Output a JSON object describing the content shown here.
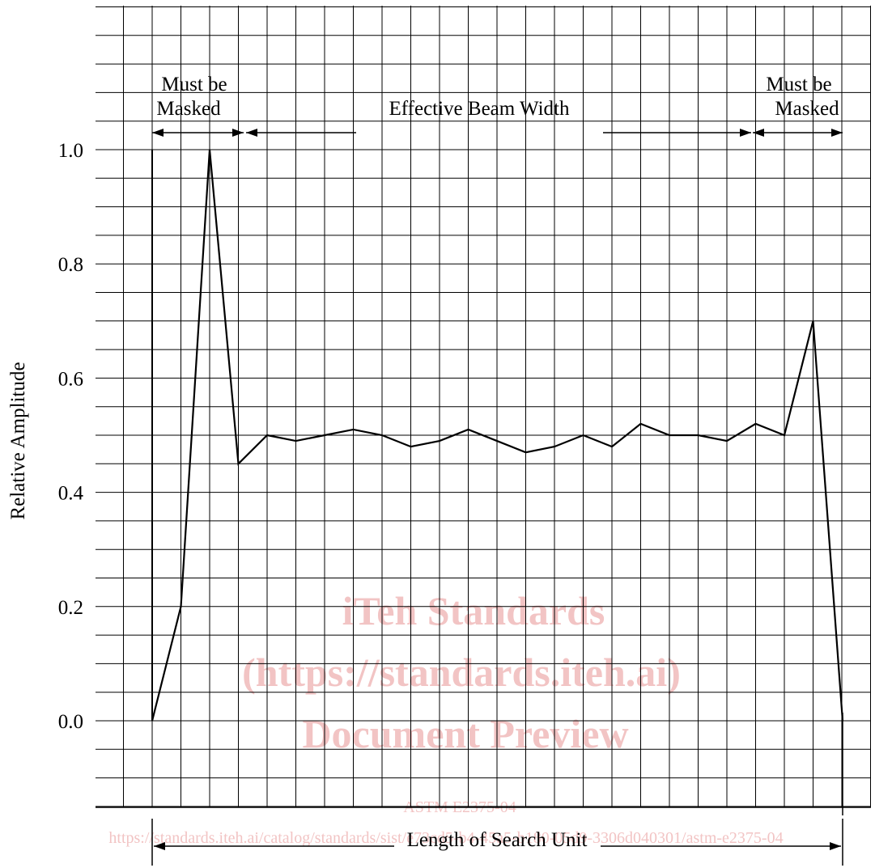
{
  "chart_data": {
    "type": "line",
    "title": "",
    "xlabel": "Length of Search Unit",
    "ylabel": "Relative Amplitude",
    "ylim": [
      -0.2,
      1.25
    ],
    "y_ticks": [
      "0.0",
      "0.2",
      "0.4",
      "0.6",
      "0.8",
      "1.0"
    ],
    "grid": true,
    "series": [
      {
        "x": [
          0,
          1,
          2,
          3,
          4,
          5,
          6,
          7,
          8,
          9,
          10,
          11,
          12,
          13,
          14,
          15,
          16,
          17,
          18,
          19,
          20,
          21,
          22,
          23,
          24
        ],
        "values": [
          0.0,
          0.2,
          1.0,
          0.45,
          0.5,
          0.49,
          0.5,
          0.51,
          0.5,
          0.48,
          0.49,
          0.51,
          0.49,
          0.47,
          0.48,
          0.5,
          0.48,
          0.52,
          0.5,
          0.5,
          0.49,
          0.52,
          0.5,
          0.7,
          0.0
        ]
      }
    ],
    "annotations": {
      "left_mask": "Must be\nMasked",
      "center": "Effective Beam Width",
      "right_mask": "Must be\nMasked"
    }
  },
  "watermark": {
    "line1": "iTeh Standards",
    "line2": "(https://standards.iteh.ai)",
    "line3": "Document Preview",
    "line4": "ASTM E2375-04",
    "url": "https://standards.iteh.ai/catalog/standards/sist/e73cd5-b4-45a5-b180-05d9-3306d040301/astm-e2375-04"
  }
}
